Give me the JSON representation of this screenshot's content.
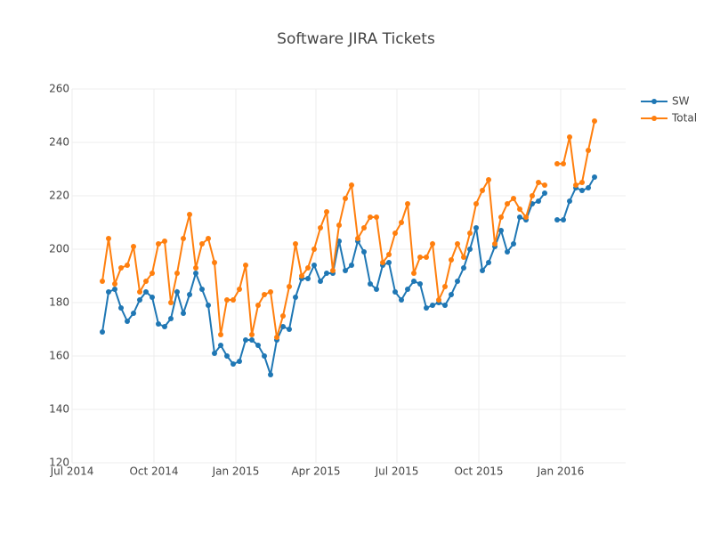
{
  "chart_data": {
    "type": "line",
    "title": "Software JIRA Tickets",
    "x": [
      34,
      41,
      48,
      55,
      62,
      69,
      76,
      83,
      90,
      97,
      104,
      111,
      118,
      125,
      132,
      139,
      146,
      153,
      160,
      167,
      174,
      181,
      188,
      195,
      202,
      209,
      216,
      223,
      230,
      237,
      244,
      251,
      258,
      265,
      272,
      279,
      286,
      293,
      300,
      307,
      314,
      321,
      328,
      335,
      342,
      349,
      356,
      363,
      370,
      377,
      384,
      391,
      398,
      405,
      412,
      419,
      426,
      433,
      440,
      447,
      454,
      461,
      468,
      475,
      482,
      489,
      496,
      503,
      510,
      517,
      524,
      531,
      538,
      545,
      552,
      559,
      566,
      573,
      580,
      587
    ],
    "series": [
      {
        "name": "SW",
        "color": "#1f77b4",
        "values": [
          169,
          184,
          185,
          178,
          173,
          176,
          181,
          184,
          182,
          172,
          171,
          174,
          184,
          176,
          183,
          191,
          185,
          179,
          161,
          164,
          160,
          157,
          158,
          166,
          166,
          164,
          160,
          153,
          166,
          171,
          170,
          182,
          189,
          189,
          194,
          188,
          191,
          191,
          203,
          192,
          194,
          203,
          199,
          187,
          185,
          194,
          195,
          184,
          181,
          185,
          188,
          187,
          178,
          179,
          180,
          179,
          183,
          188,
          193,
          200,
          208,
          192,
          195,
          201,
          207,
          199,
          202,
          212,
          211,
          217,
          218,
          221,
          null,
          211,
          211,
          218,
          223,
          222,
          223,
          227
        ]
      },
      {
        "name": "Total",
        "color": "#ff7f0e",
        "values": [
          188,
          204,
          187,
          193,
          194,
          201,
          184,
          188,
          191,
          202,
          203,
          180,
          191,
          204,
          213,
          193,
          202,
          204,
          195,
          168,
          181,
          181,
          185,
          194,
          168,
          179,
          183,
          184,
          167,
          175,
          186,
          202,
          190,
          193,
          200,
          208,
          214,
          192,
          209,
          219,
          224,
          204,
          208,
          212,
          212,
          195,
          198,
          206,
          210,
          217,
          191,
          197,
          197,
          202,
          181,
          186,
          196,
          202,
          197,
          206,
          217,
          222,
          226,
          202,
          212,
          217,
          219,
          215,
          212,
          220,
          225,
          224,
          null,
          232,
          232,
          242,
          224,
          225,
          237,
          248
        ]
      }
    ],
    "xlim": [
      0,
      622
    ],
    "xticks": [
      {
        "value": 0,
        "label": "Jul 2014"
      },
      {
        "value": 92,
        "label": "Oct 2014"
      },
      {
        "value": 184,
        "label": "Jan 2015"
      },
      {
        "value": 274,
        "label": "Apr 2015"
      },
      {
        "value": 365,
        "label": "Jul 2015"
      },
      {
        "value": 457,
        "label": "Oct 2015"
      },
      {
        "value": 549,
        "label": "Jan 2016"
      }
    ],
    "ylim": [
      120,
      260
    ],
    "yticks": [
      120,
      140,
      160,
      180,
      200,
      220,
      240,
      260
    ],
    "grid": true,
    "legend": "top-right"
  }
}
